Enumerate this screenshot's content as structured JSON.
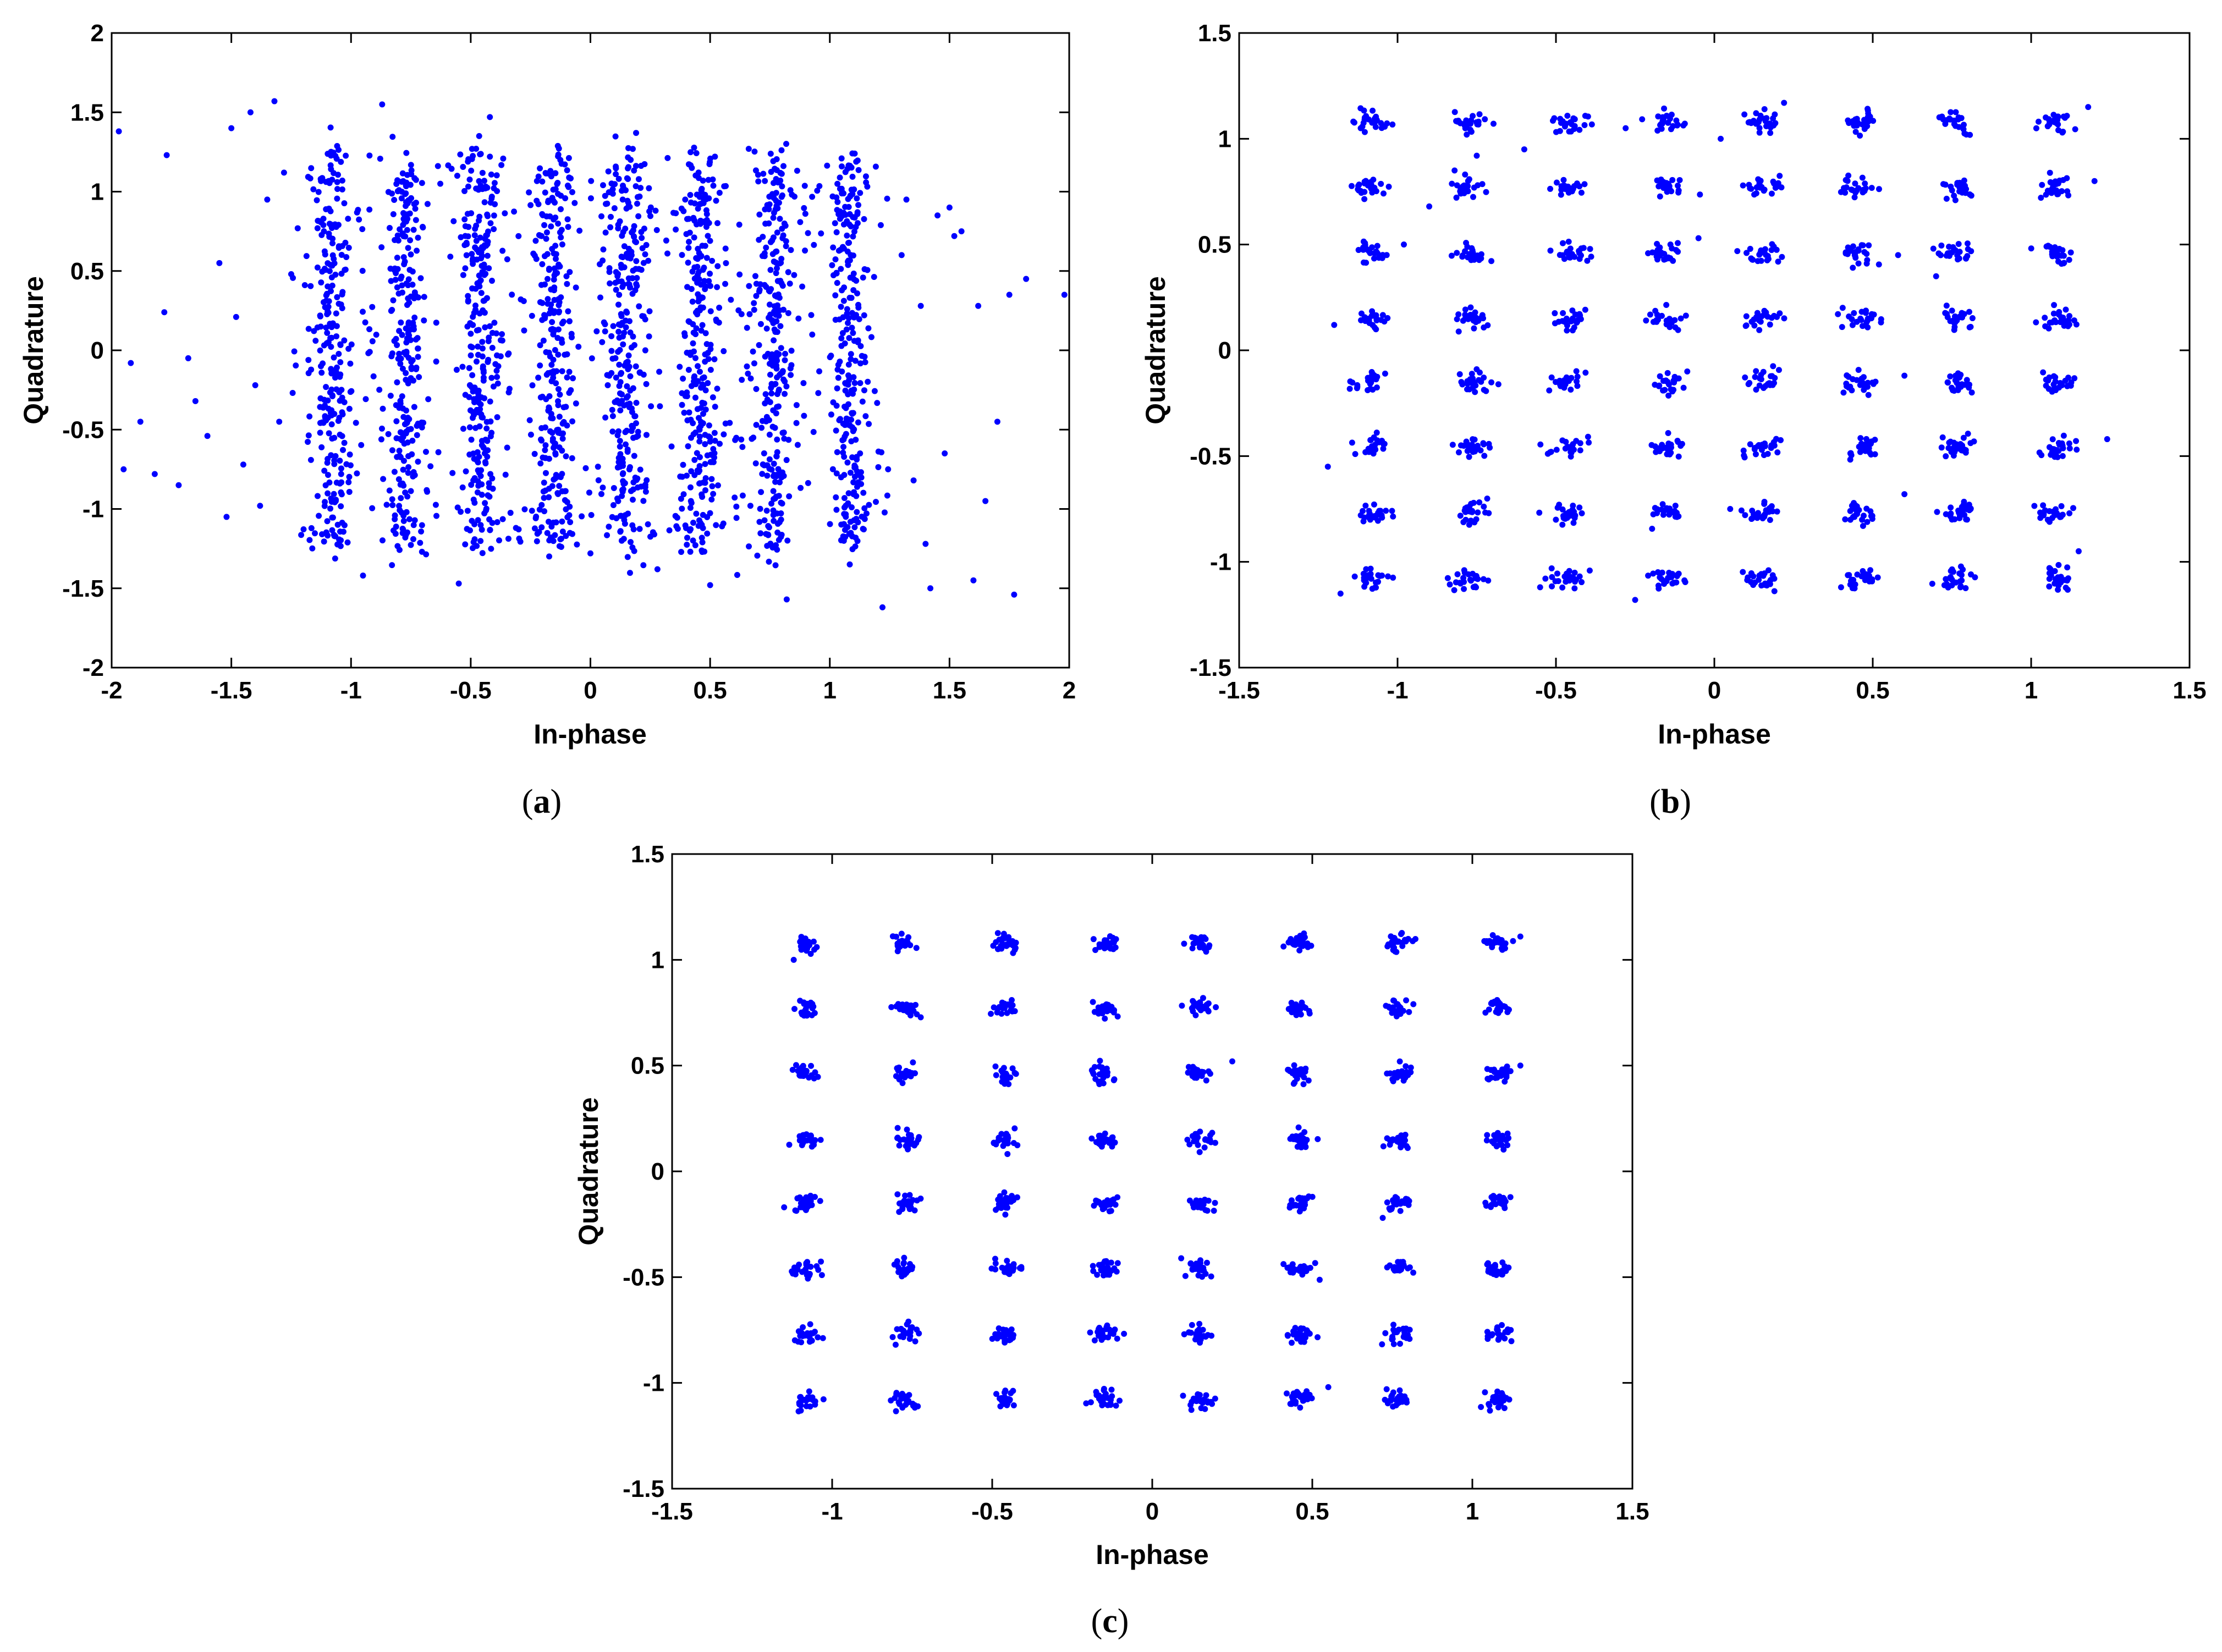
{
  "figure": {
    "captions": [
      "(a)",
      "(b)",
      "(c)"
    ],
    "caption_letters": [
      "a",
      "b",
      "c"
    ]
  },
  "colors": {
    "points": "#0000ff",
    "axes": "#000000",
    "background": "#ffffff"
  },
  "chart_data": [
    {
      "panel": "a",
      "type": "scatter",
      "title": "",
      "xlabel": "In-phase",
      "ylabel": "Quadrature",
      "xlim": [
        -2,
        2
      ],
      "ylim": [
        -2,
        2
      ],
      "xticks": [
        -2,
        -1.5,
        -1,
        -0.5,
        0,
        0.5,
        1,
        1.5,
        2
      ],
      "yticks": [
        -2,
        -1.5,
        -1,
        -0.5,
        0,
        0.5,
        1,
        1.5,
        2
      ],
      "xtick_labels": [
        "-2",
        "-1.5",
        "-1",
        "-0.5",
        "0",
        "0.5",
        "1",
        "1.5",
        "2"
      ],
      "ytick_labels": [
        "-2",
        "-1.5",
        "-1",
        "-0.5",
        "0",
        "0.5",
        "1",
        "1.5",
        "2"
      ],
      "grid": false,
      "constellation": "64-QAM",
      "cluster_levels": [
        -1.08,
        -0.77,
        -0.46,
        -0.15,
        0.15,
        0.46,
        0.77,
        1.08
      ],
      "spread_x": 0.04,
      "spread_y": 0.12,
      "points_per_cluster": 30,
      "outliers": [
        [
          -1.97,
          1.38
        ],
        [
          -1.92,
          -0.08
        ],
        [
          -1.95,
          -0.75
        ],
        [
          -1.88,
          -0.45
        ],
        [
          -1.82,
          -0.78
        ],
        [
          -1.77,
          1.23
        ],
        [
          -1.78,
          0.24
        ],
        [
          -1.72,
          -0.85
        ],
        [
          -1.68,
          -0.05
        ],
        [
          -1.65,
          -0.32
        ],
        [
          -1.6,
          -0.54
        ],
        [
          -1.55,
          0.55
        ],
        [
          -1.52,
          -1.05
        ],
        [
          -1.5,
          1.4
        ],
        [
          -1.48,
          0.21
        ],
        [
          -1.45,
          -0.72
        ],
        [
          -1.42,
          1.5
        ],
        [
          -1.4,
          -0.22
        ],
        [
          -1.38,
          -0.98
        ],
        [
          -1.35,
          0.95
        ],
        [
          -1.32,
          1.57
        ],
        [
          -1.3,
          -0.45
        ],
        [
          -1.28,
          1.12
        ],
        [
          -1.25,
          0.48
        ],
        [
          1.3,
          0.6
        ],
        [
          1.32,
          0.95
        ],
        [
          1.35,
          -0.82
        ],
        [
          1.38,
          0.28
        ],
        [
          1.4,
          -1.22
        ],
        [
          1.42,
          -1.5
        ],
        [
          1.45,
          0.85
        ],
        [
          1.48,
          -0.65
        ],
        [
          1.5,
          0.9
        ],
        [
          1.52,
          0.72
        ],
        [
          1.55,
          0.75
        ],
        [
          1.6,
          -1.45
        ],
        [
          1.62,
          0.28
        ],
        [
          1.65,
          -0.95
        ],
        [
          1.7,
          -0.45
        ],
        [
          1.75,
          0.35
        ],
        [
          1.77,
          -1.54
        ],
        [
          1.82,
          0.45
        ],
        [
          1.98,
          0.35
        ],
        [
          -0.55,
          -1.47
        ],
        [
          0.5,
          -1.48
        ],
        [
          0.82,
          -1.57
        ],
        [
          1.22,
          -1.62
        ],
        [
          -0.87,
          1.55
        ],
        [
          -0.42,
          1.47
        ],
        [
          0.0,
          -1.28
        ],
        [
          0.28,
          -1.38
        ],
        [
          -0.95,
          -1.42
        ]
      ]
    },
    {
      "panel": "b",
      "type": "scatter",
      "title": "",
      "xlabel": "In-phase",
      "ylabel": "Quadrature",
      "xlim": [
        -1.5,
        1.5
      ],
      "ylim": [
        -1.5,
        1.5
      ],
      "xticks": [
        -1.5,
        -1,
        -0.5,
        0,
        0.5,
        1,
        1.5
      ],
      "yticks": [
        -1.5,
        -1,
        -0.5,
        0,
        0.5,
        1,
        1.5
      ],
      "xtick_labels": [
        "-1.5",
        "-1",
        "-0.5",
        "0",
        "0.5",
        "1",
        "1.5"
      ],
      "ytick_labels": [
        "-1.5",
        "-1",
        "-0.5",
        "0",
        "0.5",
        "1",
        "1.5"
      ],
      "grid": false,
      "constellation": "64-QAM",
      "cluster_levels": [
        -1.08,
        -0.77,
        -0.46,
        -0.15,
        0.15,
        0.46,
        0.77,
        1.08
      ],
      "spread_x": 0.028,
      "spread_y": 0.025,
      "points_per_cluster": 24,
      "outliers": [
        [
          -1.22,
          -0.55
        ],
        [
          -1.2,
          0.12
        ],
        [
          -1.18,
          -1.15
        ],
        [
          -0.98,
          0.5
        ],
        [
          -0.9,
          0.68
        ],
        [
          -0.82,
          0.85
        ],
        [
          -0.55,
          -1.12
        ],
        [
          -0.25,
          -1.18
        ],
        [
          -0.05,
          0.53
        ],
        [
          0.05,
          -0.75
        ],
        [
          0.02,
          1.0
        ],
        [
          0.6,
          -0.12
        ],
        [
          0.58,
          0.45
        ],
        [
          1.15,
          -0.95
        ],
        [
          1.18,
          1.15
        ],
        [
          1.2,
          0.8
        ],
        [
          1.24,
          -0.42
        ],
        [
          -0.28,
          1.05
        ],
        [
          -0.6,
          0.95
        ],
        [
          0.22,
          1.17
        ],
        [
          0.4,
          -1.12
        ],
        [
          0.6,
          -0.68
        ],
        [
          -0.75,
          0.92
        ],
        [
          0.7,
          0.35
        ]
      ]
    },
    {
      "panel": "c",
      "type": "scatter",
      "title": "",
      "xlabel": "In-phase",
      "ylabel": "Quadrature",
      "xlim": [
        -1.5,
        1.5
      ],
      "ylim": [
        -1.5,
        1.5
      ],
      "xticks": [
        -1.5,
        -1,
        -0.5,
        0,
        0.5,
        1,
        1.5
      ],
      "yticks": [
        -1.5,
        -1,
        -0.5,
        0,
        0.5,
        1,
        1.5
      ],
      "xtick_labels": [
        "-1.5",
        "-1",
        "-0.5",
        "0",
        "0.5",
        "1",
        "1.5"
      ],
      "ytick_labels": [
        "-1.5",
        "-1",
        "-0.5",
        "0",
        "0.5",
        "1",
        "1.5"
      ],
      "grid": false,
      "constellation": "64-QAM",
      "cluster_levels": [
        -1.08,
        -0.77,
        -0.46,
        -0.15,
        0.15,
        0.46,
        0.77,
        1.08
      ],
      "spread_x": 0.02,
      "spread_y": 0.02,
      "points_per_cluster": 24,
      "outliers": [
        [
          -1.15,
          -0.17
        ],
        [
          -1.12,
          1.0
        ],
        [
          1.15,
          1.11
        ],
        [
          0.72,
          -0.22
        ],
        [
          0.55,
          -1.02
        ],
        [
          1.15,
          0.5
        ],
        [
          0.25,
          0.52
        ],
        [
          0.1,
          -0.77
        ],
        [
          -0.8,
          0.45
        ],
        [
          1.12,
          -0.75
        ]
      ]
    }
  ]
}
